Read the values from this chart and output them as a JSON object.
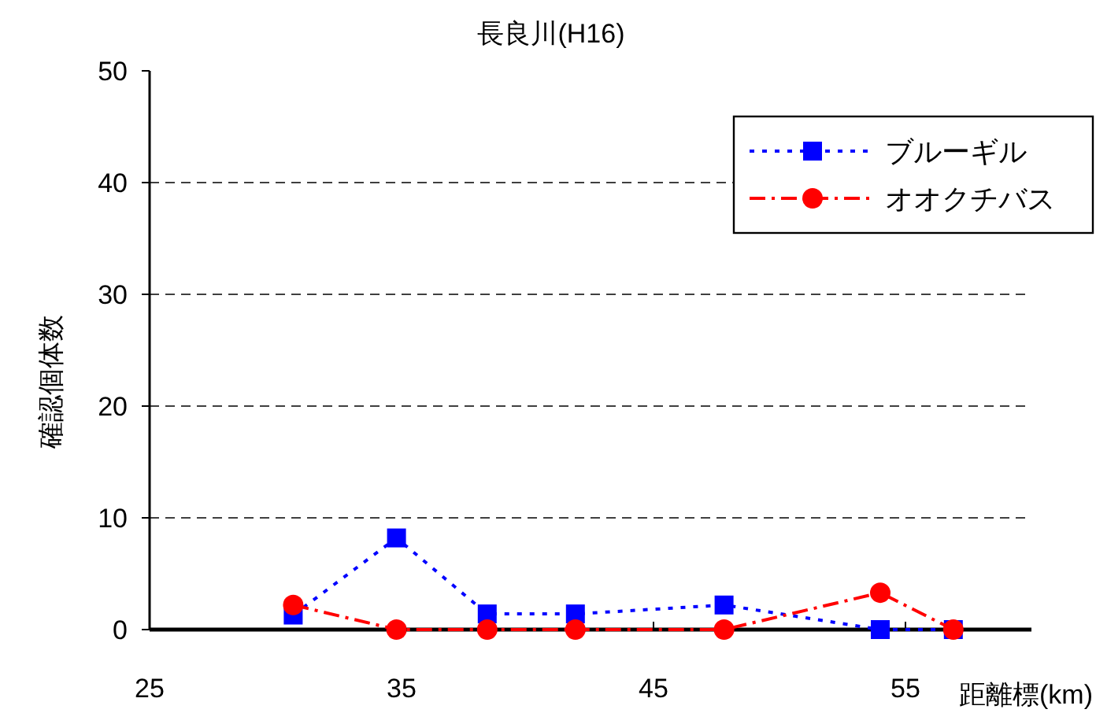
{
  "chart_data": {
    "type": "line",
    "title": "長良川(H16)",
    "xlabel": "距離標(km)",
    "ylabel": "確認個体数",
    "xlim": [
      25,
      60
    ],
    "xticks": [
      25,
      35,
      45,
      55
    ],
    "ylim": [
      0,
      50
    ],
    "yticks": [
      0,
      10,
      20,
      30,
      40,
      50
    ],
    "grid": "y",
    "legend": "top right",
    "series": [
      {
        "name": "ブルーギル",
        "color": "#0000ff",
        "marker": "square",
        "line_style": "dotted",
        "x": [
          30.7,
          34.8,
          38.4,
          41.9,
          47.8,
          54.0,
          56.9
        ],
        "values": [
          1.3,
          8.2,
          1.4,
          1.4,
          2.2,
          0,
          0
        ]
      },
      {
        "name": "オオクチバス",
        "color": "#ff0000",
        "marker": "circle",
        "line_style": "dashed",
        "x": [
          30.7,
          34.8,
          38.4,
          41.9,
          47.8,
          54.0,
          56.9
        ],
        "values": [
          2.2,
          0,
          0,
          0,
          0,
          3.3,
          0
        ]
      }
    ]
  }
}
